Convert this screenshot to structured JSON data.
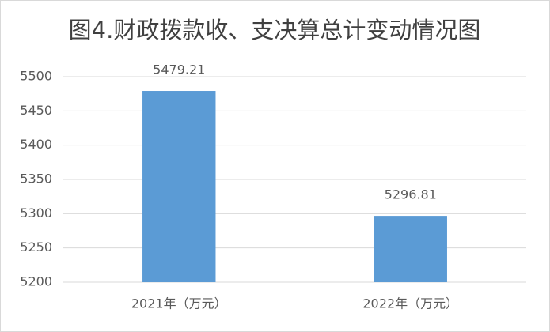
{
  "chart_data": {
    "type": "bar",
    "title": "图4.财政拨款收、支决算总计变动情况图",
    "categories": [
      "2021年（万元）",
      "2022年（万元）"
    ],
    "values": [
      5479.21,
      5296.81
    ],
    "color": "#5b9bd5",
    "ylim": [
      5200,
      5500
    ],
    "yticks": [
      5200,
      5250,
      5300,
      5350,
      5400,
      5450,
      5500
    ],
    "grid": true
  }
}
